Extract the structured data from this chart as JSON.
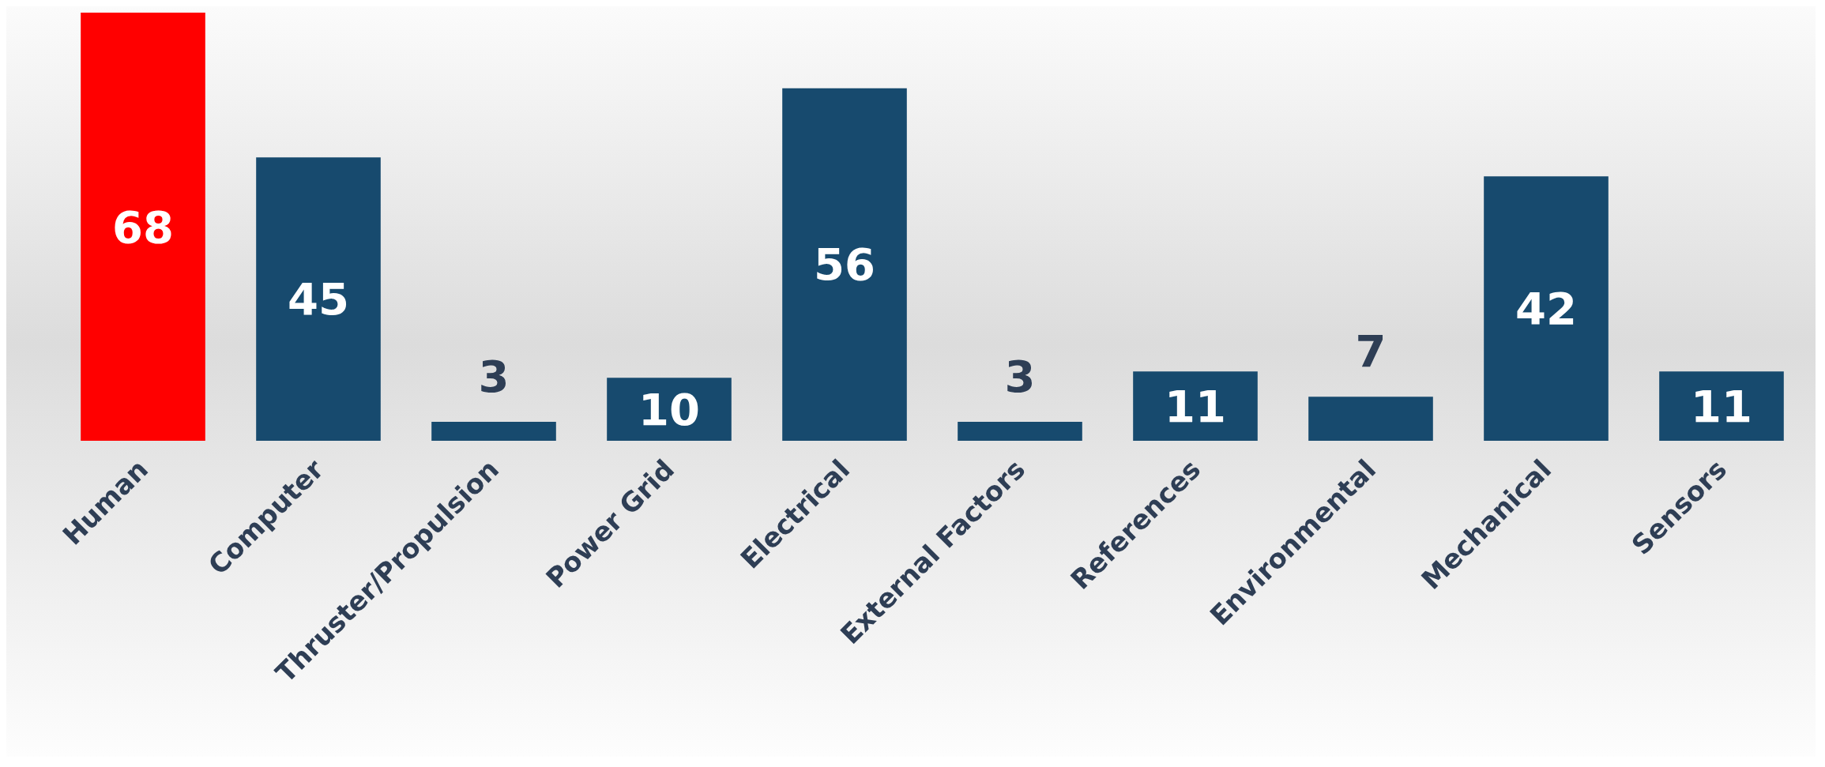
{
  "chart_data": {
    "type": "bar",
    "categories": [
      "Human",
      "Computer",
      "Thruster/Propulsion",
      "Power Grid",
      "Electrical",
      "External Factors",
      "References",
      "Environmental",
      "Mechanical",
      "Sensors"
    ],
    "values": [
      68,
      45,
      3,
      10,
      56,
      3,
      11,
      7,
      42,
      11
    ],
    "colors": [
      "#ff0000",
      "#174a6e",
      "#174a6e",
      "#174a6e",
      "#174a6e",
      "#174a6e",
      "#174a6e",
      "#174a6e",
      "#174a6e",
      "#174a6e"
    ],
    "data_labels": true
  }
}
